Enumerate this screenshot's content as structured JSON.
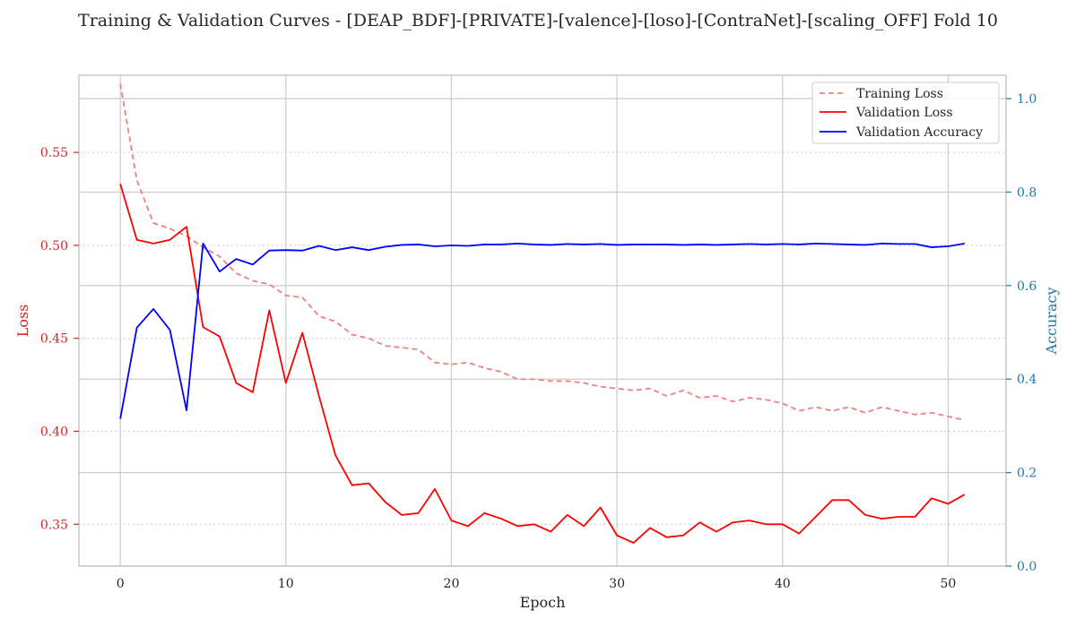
{
  "chart_data": {
    "type": "line",
    "title": "Training & Validation Curves - [DEAP_BDF]-[PRIVATE]-[valence]-[loso]-[ContraNet]-[scaling_OFF] Fold 10",
    "xlabel": "Epoch",
    "ylabel_left": "Loss",
    "ylabel_right": "Accuracy",
    "xlim": [
      -2.5,
      53.5
    ],
    "ylim_left": [
      0.3275,
      0.5915
    ],
    "ylim_right": [
      0.0,
      1.05
    ],
    "x_ticks": [
      0,
      10,
      20,
      30,
      40,
      50
    ],
    "y_left_ticks": [
      0.35,
      0.4,
      0.45,
      0.5,
      0.55
    ],
    "y_left_tick_labels": [
      "0.35",
      "0.40",
      "0.45",
      "0.50",
      "0.55"
    ],
    "y_right_ticks": [
      0.0,
      0.2,
      0.4,
      0.6,
      0.8,
      1.0
    ],
    "y_right_tick_labels": [
      "0.0",
      "0.2",
      "0.4",
      "0.6",
      "0.8",
      "1.0"
    ],
    "grid": true,
    "legend_position": "top-right",
    "colors": {
      "left_axis": "#d62728",
      "right_axis": "#1f77b4",
      "training_loss": "#f08080",
      "validation_loss": "#ff0000",
      "validation_accuracy": "#0000ff",
      "text": "#262626"
    },
    "x": [
      0,
      1,
      2,
      3,
      4,
      5,
      6,
      7,
      8,
      9,
      10,
      11,
      12,
      13,
      14,
      15,
      16,
      17,
      18,
      19,
      20,
      21,
      22,
      23,
      24,
      25,
      26,
      27,
      28,
      29,
      30,
      31,
      32,
      33,
      34,
      35,
      36,
      37,
      38,
      39,
      40,
      41,
      42,
      43,
      44,
      45,
      46,
      47,
      48,
      49,
      50,
      51
    ],
    "series": [
      {
        "name": "Training Loss",
        "axis": "left",
        "style": "dashed",
        "values": [
          0.587,
          0.535,
          0.512,
          0.509,
          0.505,
          0.499,
          0.494,
          0.485,
          0.481,
          0.479,
          0.473,
          0.472,
          0.462,
          0.459,
          0.452,
          0.45,
          0.446,
          0.445,
          0.444,
          0.437,
          0.436,
          0.437,
          0.434,
          0.432,
          0.428,
          0.428,
          0.427,
          0.427,
          0.426,
          0.424,
          0.423,
          0.422,
          0.423,
          0.419,
          0.422,
          0.418,
          0.419,
          0.416,
          0.418,
          0.417,
          0.415,
          0.411,
          0.413,
          0.411,
          0.413,
          0.41,
          0.413,
          0.411,
          0.409,
          0.41,
          0.408,
          0.406
        ]
      },
      {
        "name": "Validation Loss",
        "axis": "left",
        "style": "solid",
        "values": [
          0.533,
          0.503,
          0.501,
          0.503,
          0.51,
          0.456,
          0.451,
          0.426,
          0.421,
          0.465,
          0.426,
          0.453,
          0.419,
          0.387,
          0.371,
          0.372,
          0.362,
          0.355,
          0.356,
          0.369,
          0.352,
          0.349,
          0.356,
          0.353,
          0.349,
          0.35,
          0.346,
          0.355,
          0.349,
          0.359,
          0.344,
          0.34,
          0.348,
          0.343,
          0.344,
          0.351,
          0.346,
          0.351,
          0.352,
          0.35,
          0.35,
          0.345,
          0.354,
          0.363,
          0.363,
          0.355,
          0.353,
          0.354,
          0.354,
          0.364,
          0.361,
          0.366
        ]
      },
      {
        "name": "Validation Accuracy",
        "axis": "right",
        "style": "solid",
        "values": [
          0.315,
          0.51,
          0.55,
          0.505,
          0.333,
          0.69,
          0.63,
          0.657,
          0.645,
          0.675,
          0.676,
          0.675,
          0.685,
          0.676,
          0.682,
          0.676,
          0.683,
          0.687,
          0.688,
          0.684,
          0.686,
          0.685,
          0.688,
          0.688,
          0.69,
          0.688,
          0.687,
          0.689,
          0.688,
          0.689,
          0.687,
          0.688,
          0.688,
          0.688,
          0.687,
          0.688,
          0.687,
          0.688,
          0.689,
          0.688,
          0.689,
          0.688,
          0.69,
          0.689,
          0.688,
          0.687,
          0.69,
          0.689,
          0.689,
          0.682,
          0.684,
          0.69
        ]
      }
    ]
  }
}
